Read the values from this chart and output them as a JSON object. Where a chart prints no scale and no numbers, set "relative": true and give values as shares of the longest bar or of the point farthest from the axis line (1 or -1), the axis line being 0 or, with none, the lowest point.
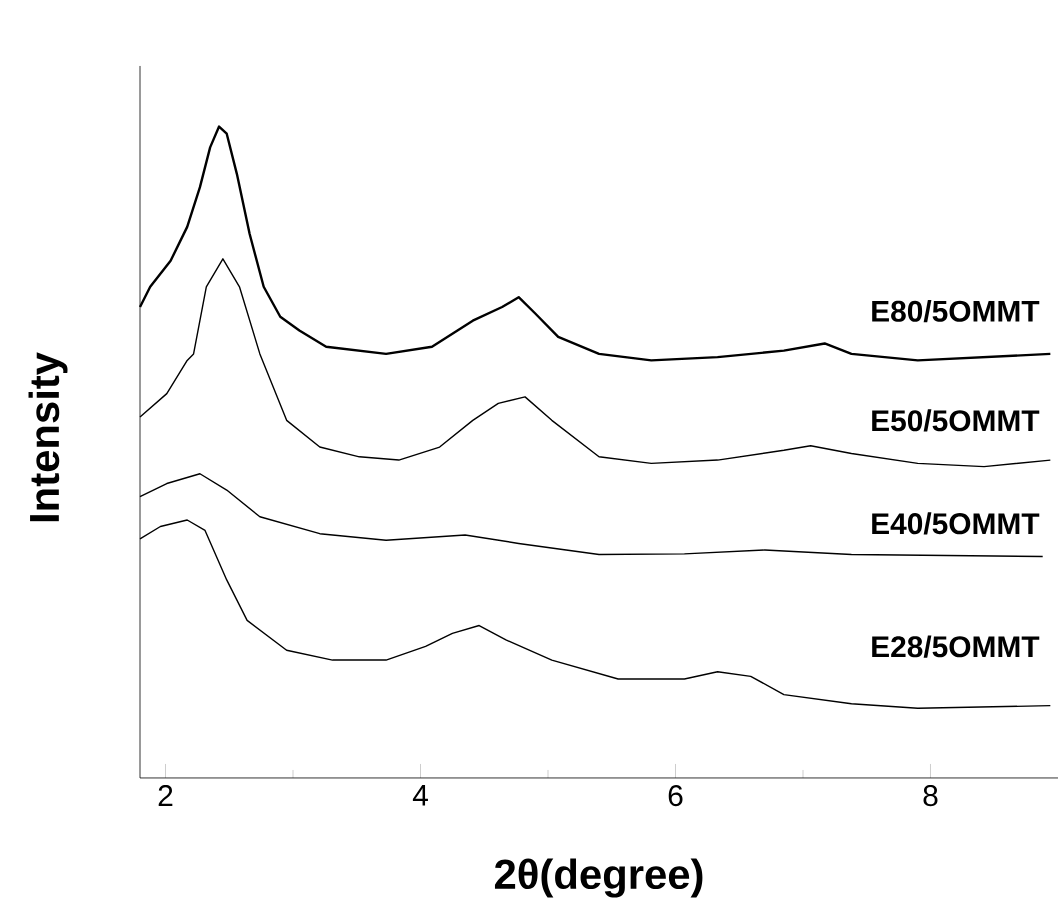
{
  "chart_data": {
    "type": "line",
    "xlabel": "2θ(degree)",
    "ylabel": "Intensity",
    "relative": true,
    "xlim": [
      1.8,
      9.0
    ],
    "xticks": [
      2,
      4,
      6,
      8
    ],
    "series": [
      {
        "name": "E80/5OMMT",
        "color": "#000000",
        "x": [
          1.8,
          1.88,
          2.04,
          2.17,
          2.27,
          2.35,
          2.42,
          2.48,
          2.56,
          2.66,
          2.77,
          2.9,
          3.05,
          3.26,
          3.73,
          4.09,
          4.41,
          4.64,
          4.77,
          4.9,
          5.08,
          5.4,
          5.81,
          6.33,
          6.85,
          7.17,
          7.38,
          7.9,
          8.94
        ],
        "values": [
          0.723,
          0.754,
          0.794,
          0.846,
          0.907,
          0.968,
          1,
          0.989,
          0.927,
          0.835,
          0.754,
          0.708,
          0.687,
          0.662,
          0.651,
          0.662,
          0.702,
          0.723,
          0.738,
          0.713,
          0.677,
          0.651,
          0.641,
          0.646,
          0.656,
          0.667,
          0.651,
          0.641,
          0.651
        ]
      },
      {
        "name": "E50/5OMMT",
        "color": "#000000",
        "x": [
          1.8,
          2.01,
          2.17,
          2.22,
          2.32,
          2.45,
          2.58,
          2.74,
          2.95,
          3.21,
          3.52,
          3.83,
          4.15,
          4.41,
          4.61,
          4.82,
          5.03,
          5.4,
          5.81,
          6.33,
          6.85,
          7.06,
          7.38,
          7.9,
          8.42,
          8.94
        ],
        "values": [
          0.554,
          0.59,
          0.641,
          0.651,
          0.754,
          0.797,
          0.754,
          0.651,
          0.549,
          0.508,
          0.493,
          0.488,
          0.508,
          0.549,
          0.575,
          0.585,
          0.549,
          0.493,
          0.483,
          0.488,
          0.503,
          0.51,
          0.498,
          0.483,
          0.478,
          0.488
        ]
      },
      {
        "name": "E40/5OMMT",
        "color": "#000000",
        "x": [
          1.8,
          2.01,
          2.27,
          2.48,
          2.74,
          3.21,
          3.73,
          4.35,
          4.77,
          5.4,
          6.07,
          6.7,
          7.38,
          8.88
        ],
        "values": [
          0.432,
          0.452,
          0.467,
          0.442,
          0.401,
          0.375,
          0.365,
          0.373,
          0.36,
          0.343,
          0.344,
          0.35,
          0.343,
          0.34
        ]
      },
      {
        "name": "E28/5OMMT",
        "color": "#000000",
        "x": [
          1.8,
          1.96,
          2.17,
          2.31,
          2.48,
          2.64,
          2.95,
          3.31,
          3.73,
          4.04,
          4.25,
          4.46,
          4.67,
          5.03,
          5.55,
          6.07,
          6.33,
          6.59,
          6.85,
          7.38,
          7.9,
          8.94
        ],
        "values": [
          0.367,
          0.386,
          0.396,
          0.38,
          0.304,
          0.242,
          0.196,
          0.181,
          0.181,
          0.202,
          0.222,
          0.234,
          0.212,
          0.181,
          0.152,
          0.152,
          0.163,
          0.156,
          0.128,
          0.114,
          0.107,
          0.111
        ]
      }
    ]
  }
}
